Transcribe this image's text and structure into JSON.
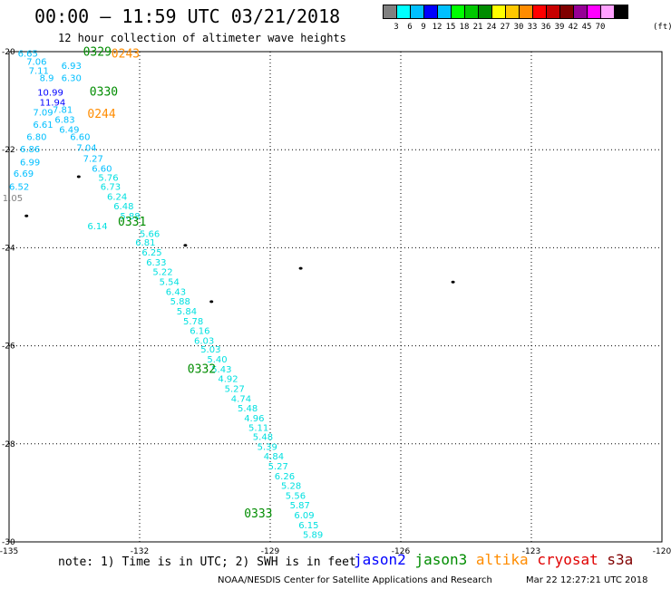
{
  "title": "00:00 — 11:59 UTC 03/21/2018",
  "subtitle": "12 hour collection of altimeter wave heights",
  "legend": {
    "colors": [
      "#808080",
      "#00ffff",
      "#00bfff",
      "#0000ff",
      "#00c0ff",
      "#00ff00",
      "#00c800",
      "#008c00",
      "#ffff00",
      "#ffc800",
      "#ff8c00",
      "#ff0000",
      "#c80000",
      "#800000",
      "#960096",
      "#ff00ff",
      "#ffa0ff",
      "#000000"
    ],
    "labels": [
      "3",
      "6",
      "9",
      "12",
      "15",
      "18",
      "21",
      "24",
      "27",
      "30",
      "33",
      "36",
      "39",
      "42",
      "45",
      "70"
    ],
    "unit": "(ft)"
  },
  "axes": {
    "x_ticks": [
      "-135",
      "-132",
      "-129",
      "-126",
      "-123",
      "-120"
    ],
    "y_ticks": [
      "-20",
      "-22",
      "-24",
      "-26",
      "-28",
      "-30"
    ],
    "lon_range": [
      -135,
      -120
    ],
    "lat_range": [
      -30,
      -20
    ]
  },
  "map_labels": {
    "time_labels": [
      {
        "text": "0329",
        "color": "#008c00",
        "lon": -133.3,
        "lat": -20.08
      },
      {
        "text": "0243",
        "color": "#ff8c00",
        "lon": -132.65,
        "lat": -20.12
      },
      {
        "text": "0330",
        "color": "#008c00",
        "lon": -133.15,
        "lat": -20.9
      },
      {
        "text": "0244",
        "color": "#ff8c00",
        "lon": -133.2,
        "lat": -21.35
      },
      {
        "text": "0331",
        "color": "#008c00",
        "lon": -132.5,
        "lat": -23.55
      },
      {
        "text": "0332",
        "color": "#008c00",
        "lon": -130.9,
        "lat": -26.55
      },
      {
        "text": "0333",
        "color": "#008c00",
        "lon": -129.6,
        "lat": -29.5
      }
    ],
    "swh": [
      {
        "text": "6.65",
        "color": "#00bfff",
        "lon": -134.8,
        "lat": -20.1
      },
      {
        "text": "7.06",
        "color": "#00bfff",
        "lon": -134.6,
        "lat": -20.27
      },
      {
        "text": "6.93",
        "color": "#00bfff",
        "lon": -133.8,
        "lat": -20.35
      },
      {
        "text": "7.11",
        "color": "#00bfff",
        "lon": -134.55,
        "lat": -20.45
      },
      {
        "text": "8.9",
        "color": "#00bfff",
        "lon": -134.3,
        "lat": -20.6
      },
      {
        "text": "6.30",
        "color": "#00bfff",
        "lon": -133.8,
        "lat": -20.6
      },
      {
        "text": "10.99",
        "color": "#0000ff",
        "lon": -134.35,
        "lat": -20.9
      },
      {
        "text": "11.94",
        "color": "#0000ff",
        "lon": -134.3,
        "lat": -21.1
      },
      {
        "text": "7.81",
        "color": "#00bfff",
        "lon": -134.0,
        "lat": -21.25
      },
      {
        "text": "7.09",
        "color": "#00bfff",
        "lon": -134.45,
        "lat": -21.3
      },
      {
        "text": "6.83",
        "color": "#00bfff",
        "lon": -133.95,
        "lat": -21.45
      },
      {
        "text": "6.61",
        "color": "#00bfff",
        "lon": -134.45,
        "lat": -21.55
      },
      {
        "text": "6.49",
        "color": "#00bfff",
        "lon": -133.85,
        "lat": -21.65
      },
      {
        "text": "6.80",
        "color": "#00bfff",
        "lon": -134.6,
        "lat": -21.8
      },
      {
        "text": "6.60",
        "color": "#00bfff",
        "lon": -133.6,
        "lat": -21.8
      },
      {
        "text": "6.86",
        "color": "#00bfff",
        "lon": -134.75,
        "lat": -22.05
      },
      {
        "text": "7.04",
        "color": "#00bfff",
        "lon": -133.45,
        "lat": -22.02
      },
      {
        "text": "6.99",
        "color": "#00bfff",
        "lon": -134.75,
        "lat": -22.32
      },
      {
        "text": "7.27",
        "color": "#00bfff",
        "lon": -133.3,
        "lat": -22.25
      },
      {
        "text": "6.60",
        "color": "#00bfff",
        "lon": -133.1,
        "lat": -22.45
      },
      {
        "text": "6.69",
        "color": "#00bfff",
        "lon": -134.9,
        "lat": -22.55
      },
      {
        "text": "5.76",
        "color": "#00e0e0",
        "lon": -132.95,
        "lat": -22.63
      },
      {
        "text": "6.52",
        "color": "#00bfff",
        "lon": -135.0,
        "lat": -22.82
      },
      {
        "text": "6.73",
        "color": "#00e0e0",
        "lon": -132.9,
        "lat": -22.82
      },
      {
        "text": "1.05",
        "color": "#808080",
        "lon": -135.15,
        "lat": -23.05
      },
      {
        "text": "6.24",
        "color": "#00e0e0",
        "lon": -132.75,
        "lat": -23.02
      },
      {
        "text": "6.48",
        "color": "#00e0e0",
        "lon": -132.6,
        "lat": -23.22
      },
      {
        "text": "5.88",
        "color": "#00e0e0",
        "lon": -132.45,
        "lat": -23.42
      },
      {
        "text": "6.14",
        "color": "#00e0e0",
        "lon": -133.2,
        "lat": -23.62
      },
      {
        "text": "5.66",
        "color": "#00e0e0",
        "lon": -132.0,
        "lat": -23.78
      },
      {
        "text": "6.81",
        "color": "#00e0e0",
        "lon": -132.1,
        "lat": -23.96
      },
      {
        "text": "6.25",
        "color": "#00e0e0",
        "lon": -131.95,
        "lat": -24.16
      },
      {
        "text": "6.33",
        "color": "#00e0e0",
        "lon": -131.85,
        "lat": -24.36
      },
      {
        "text": "5.22",
        "color": "#00e0e0",
        "lon": -131.7,
        "lat": -24.56
      },
      {
        "text": "5.54",
        "color": "#00e0e0",
        "lon": -131.55,
        "lat": -24.76
      },
      {
        "text": "6.43",
        "color": "#00e0e0",
        "lon": -131.4,
        "lat": -24.96
      },
      {
        "text": "5.88",
        "color": "#00e0e0",
        "lon": -131.3,
        "lat": -25.16
      },
      {
        "text": "5.84",
        "color": "#00e0e0",
        "lon": -131.15,
        "lat": -25.36
      },
      {
        "text": "5.78",
        "color": "#00e0e0",
        "lon": -131.0,
        "lat": -25.56
      },
      {
        "text": "6.16",
        "color": "#00e0e0",
        "lon": -130.85,
        "lat": -25.76
      },
      {
        "text": "6.03",
        "color": "#00e0e0",
        "lon": -130.75,
        "lat": -25.96
      },
      {
        "text": "5.03",
        "color": "#00e0e0",
        "lon": -130.6,
        "lat": -26.14
      },
      {
        "text": "5.40",
        "color": "#00e0e0",
        "lon": -130.45,
        "lat": -26.34
      },
      {
        "text": "5.43",
        "color": "#00e0e0",
        "lon": -130.35,
        "lat": -26.54
      },
      {
        "text": "4.92",
        "color": "#00e0e0",
        "lon": -130.2,
        "lat": -26.74
      },
      {
        "text": "5.27",
        "color": "#00e0e0",
        "lon": -130.05,
        "lat": -26.94
      },
      {
        "text": "4.74",
        "color": "#00e0e0",
        "lon": -129.9,
        "lat": -27.14
      },
      {
        "text": "5.48",
        "color": "#00e0e0",
        "lon": -129.75,
        "lat": -27.34
      },
      {
        "text": "4.96",
        "color": "#00e0e0",
        "lon": -129.6,
        "lat": -27.54
      },
      {
        "text": "5.11",
        "color": "#00e0e0",
        "lon": -129.5,
        "lat": -27.74
      },
      {
        "text": "5.48",
        "color": "#00e0e0",
        "lon": -129.4,
        "lat": -27.92
      },
      {
        "text": "5.39",
        "color": "#00e0e0",
        "lon": -129.3,
        "lat": -28.12
      },
      {
        "text": "4.84",
        "color": "#00e0e0",
        "lon": -129.15,
        "lat": -28.32
      },
      {
        "text": "5.27",
        "color": "#00e0e0",
        "lon": -129.05,
        "lat": -28.52
      },
      {
        "text": "6.26",
        "color": "#00e0e0",
        "lon": -128.9,
        "lat": -28.72
      },
      {
        "text": "5.28",
        "color": "#00e0e0",
        "lon": -128.75,
        "lat": -28.92
      },
      {
        "text": "5.56",
        "color": "#00e0e0",
        "lon": -128.65,
        "lat": -29.12
      },
      {
        "text": "5.87",
        "color": "#00e0e0",
        "lon": -128.55,
        "lat": -29.32
      },
      {
        "text": "6.09",
        "color": "#00e0e0",
        "lon": -128.45,
        "lat": -29.52
      },
      {
        "text": "6.15",
        "color": "#00e0e0",
        "lon": -128.35,
        "lat": -29.72
      },
      {
        "text": "5.89",
        "color": "#00e0e0",
        "lon": -128.25,
        "lat": -29.92
      }
    ],
    "islands": [
      {
        "lon": -133.4,
        "lat": -22.55
      },
      {
        "lon": -134.6,
        "lat": -23.35
      },
      {
        "lon": -130.95,
        "lat": -23.95
      },
      {
        "lon": -128.3,
        "lat": -24.42
      },
      {
        "lon": -124.8,
        "lat": -24.7
      },
      {
        "lon": -130.35,
        "lat": -25.1
      }
    ]
  },
  "note": "note: 1) Time is in UTC; 2) SWH is in feet",
  "satellites": [
    {
      "name": "jason2",
      "color": "#0000ff"
    },
    {
      "name": "jason3",
      "color": "#008c00"
    },
    {
      "name": "altika",
      "color": "#ff8c00"
    },
    {
      "name": "cryosat",
      "color": "#e00000"
    },
    {
      "name": "s3a",
      "color": "#800000"
    }
  ],
  "credit": "NOAA/NESDIS Center for Satellite Applications and Research",
  "timestamp": "Mar 22 12:27:21 UTC 2018"
}
